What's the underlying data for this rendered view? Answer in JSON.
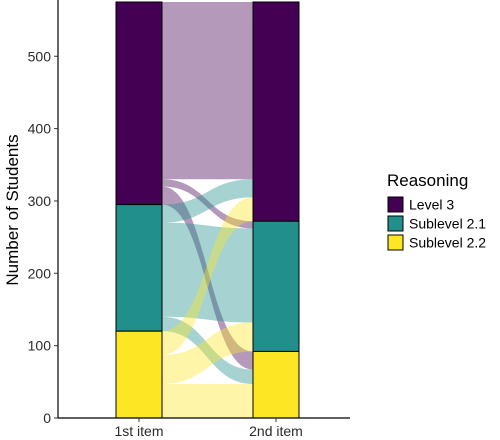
{
  "chart_data": {
    "type": "alluvial",
    "ylabel": "Number of Students",
    "xlabel": "",
    "ylim": [
      0,
      575
    ],
    "yticks": [
      0,
      100,
      200,
      300,
      400,
      500
    ],
    "axes": [
      "1st item",
      "2nd item"
    ],
    "legend": {
      "title": "Reasoning",
      "position": "right",
      "items": [
        {
          "name": "Level 3",
          "color": "#440154"
        },
        {
          "name": "Sublevel 2.1",
          "color": "#21908C"
        },
        {
          "name": "Sublevel 2.2",
          "color": "#FDE725"
        }
      ]
    },
    "stratum_order_top_to_bottom": [
      "Level 3",
      "Sublevel 2.1",
      "Sublevel 2.2"
    ],
    "stratum_totals": {
      "1st item": {
        "Level 3": 280,
        "Sublevel 2.1": 175,
        "Sublevel 2.2": 120
      },
      "2nd item": {
        "Level 3": 303,
        "Sublevel 2.1": 180,
        "Sublevel 2.2": 92
      }
    },
    "flows": [
      {
        "from": "Level 3",
        "to": "Level 3",
        "value": 245
      },
      {
        "from": "Level 3",
        "to": "Sublevel 2.1",
        "value": 10
      },
      {
        "from": "Level 3",
        "to": "Sublevel 2.2",
        "value": 25
      },
      {
        "from": "Sublevel 2.1",
        "to": "Level 3",
        "value": 25
      },
      {
        "from": "Sublevel 2.1",
        "to": "Sublevel 2.1",
        "value": 130
      },
      {
        "from": "Sublevel 2.1",
        "to": "Sublevel 2.2",
        "value": 20
      },
      {
        "from": "Sublevel 2.2",
        "to": "Level 3",
        "value": 33
      },
      {
        "from": "Sublevel 2.2",
        "to": "Sublevel 2.1",
        "value": 40
      },
      {
        "from": "Sublevel 2.2",
        "to": "Sublevel 2.2",
        "value": 47
      }
    ],
    "grid": false
  }
}
